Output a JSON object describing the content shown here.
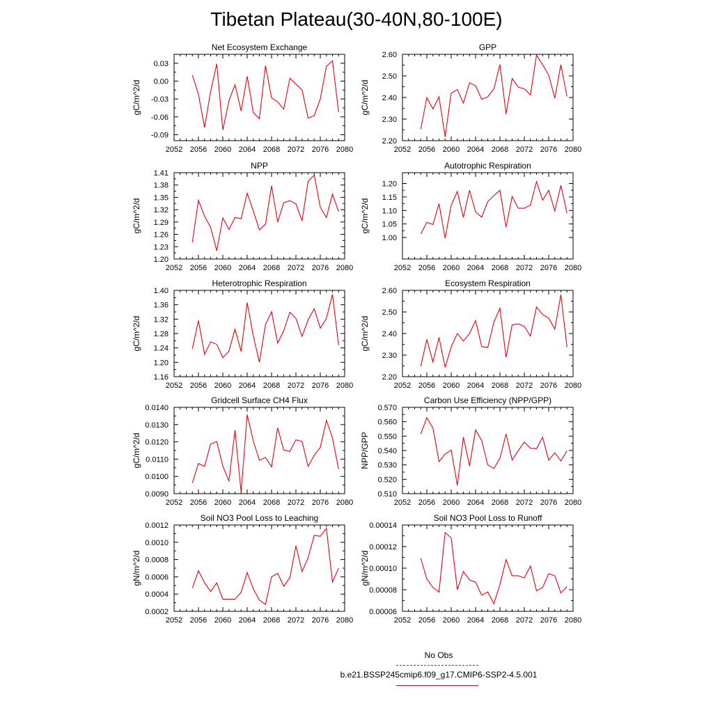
{
  "title": "Tibetan Plateau(30-40N,80-100E)",
  "legend": {
    "obs_label": "No Obs",
    "obs_color": "#3b3bd6",
    "case_label": "b.e21.BSSP245cmip6.f09_g17.CMIP6-SSP2-4.5.001",
    "case_color": "#e8000b"
  },
  "x_ticks": [
    "2052",
    "2056",
    "2060",
    "2064",
    "2068",
    "2072",
    "2076",
    "2080"
  ],
  "chart_data": [
    {
      "type": "line",
      "title": "Net Ecosystem Exchange",
      "ylabel": "gC/m^2/d",
      "xlim": [
        2052,
        2080
      ],
      "ylim": [
        -0.1,
        0.045
      ],
      "yticks": [
        "0.03",
        "0.00",
        "-0.03",
        "-0.06",
        "-0.09"
      ],
      "yticks_values": [
        0.03,
        0.0,
        -0.03,
        -0.06,
        -0.09
      ],
      "x": [
        2055,
        2056,
        2057,
        2058,
        2059,
        2060,
        2061,
        2062,
        2063,
        2064,
        2065,
        2066,
        2067,
        2068,
        2069,
        2070,
        2071,
        2072,
        2073,
        2074,
        2075,
        2076,
        2077,
        2078,
        2079
      ],
      "values": [
        0.01,
        -0.022,
        -0.078,
        -0.017,
        0.029,
        -0.082,
        -0.033,
        -0.006,
        -0.05,
        0.008,
        -0.053,
        -0.063,
        0.026,
        -0.028,
        -0.035,
        -0.047,
        0.005,
        -0.005,
        -0.015,
        -0.062,
        -0.058,
        -0.03,
        0.025,
        0.034,
        -0.052
      ]
    },
    {
      "type": "line",
      "title": "GPP",
      "ylabel": "gC/m^2/d",
      "xlim": [
        2052,
        2080
      ],
      "ylim": [
        2.2,
        2.6
      ],
      "yticks": [
        "2.60",
        "2.50",
        "2.40",
        "2.30",
        "2.20"
      ],
      "yticks_values": [
        2.6,
        2.5,
        2.4,
        2.3,
        2.2
      ],
      "x": [
        2055,
        2056,
        2057,
        2058,
        2059,
        2060,
        2061,
        2062,
        2063,
        2064,
        2065,
        2066,
        2067,
        2068,
        2069,
        2070,
        2071,
        2072,
        2073,
        2074,
        2075,
        2076,
        2077,
        2078,
        2079
      ],
      "values": [
        2.254,
        2.399,
        2.347,
        2.403,
        2.218,
        2.42,
        2.437,
        2.374,
        2.468,
        2.455,
        2.392,
        2.403,
        2.44,
        2.553,
        2.324,
        2.488,
        2.448,
        2.44,
        2.412,
        2.596,
        2.552,
        2.504,
        2.397,
        2.552,
        2.405
      ]
    },
    {
      "type": "line",
      "title": "NPP",
      "ylabel": "gC/m^2/d",
      "xlim": [
        2052,
        2080
      ],
      "ylim": [
        1.2,
        1.41
      ],
      "yticks": [
        "1.41",
        "1.38",
        "1.35",
        "1.32",
        "1.29",
        "1.26",
        "1.23",
        "1.20"
      ],
      "yticks_values": [
        1.41,
        1.38,
        1.35,
        1.32,
        1.29,
        1.26,
        1.23,
        1.2
      ],
      "x": [
        2055,
        2056,
        2057,
        2058,
        2059,
        2060,
        2061,
        2062,
        2063,
        2064,
        2065,
        2066,
        2067,
        2068,
        2069,
        2070,
        2071,
        2072,
        2073,
        2074,
        2075,
        2076,
        2077,
        2078,
        2079
      ],
      "values": [
        1.241,
        1.343,
        1.304,
        1.277,
        1.22,
        1.3,
        1.272,
        1.301,
        1.298,
        1.36,
        1.317,
        1.271,
        1.285,
        1.378,
        1.29,
        1.337,
        1.342,
        1.334,
        1.293,
        1.389,
        1.404,
        1.326,
        1.301,
        1.358,
        1.315
      ]
    },
    {
      "type": "line",
      "title": "Autotrophic Respiration",
      "ylabel": "gC/m^2/d",
      "xlim": [
        2052,
        2080
      ],
      "ylim": [
        0.92,
        1.24
      ],
      "yticks": [
        "1.20",
        "1.15",
        "1.10",
        "1.05",
        "1.00"
      ],
      "yticks_values": [
        1.2,
        1.15,
        1.1,
        1.05,
        1.0
      ],
      "x": [
        2055,
        2056,
        2057,
        2058,
        2059,
        2060,
        2061,
        2062,
        2063,
        2064,
        2065,
        2066,
        2067,
        2068,
        2069,
        2070,
        2071,
        2072,
        2073,
        2074,
        2075,
        2076,
        2077,
        2078,
        2079
      ],
      "values": [
        1.013,
        1.056,
        1.048,
        1.125,
        0.997,
        1.12,
        1.17,
        1.074,
        1.175,
        1.095,
        1.075,
        1.133,
        1.155,
        1.175,
        1.038,
        1.152,
        1.108,
        1.108,
        1.12,
        1.207,
        1.138,
        1.175,
        1.098,
        1.193,
        1.09
      ]
    },
    {
      "type": "line",
      "title": "Heterotrophic Respiration",
      "ylabel": "gC/m^2/d",
      "xlim": [
        2052,
        2080
      ],
      "ylim": [
        1.16,
        1.4
      ],
      "yticks": [
        "1.40",
        "1.36",
        "1.32",
        "1.28",
        "1.24",
        "1.20",
        "1.16"
      ],
      "yticks_values": [
        1.4,
        1.36,
        1.32,
        1.28,
        1.24,
        1.2,
        1.16
      ],
      "x": [
        2055,
        2056,
        2057,
        2058,
        2059,
        2060,
        2061,
        2062,
        2063,
        2064,
        2065,
        2066,
        2067,
        2068,
        2069,
        2070,
        2071,
        2072,
        2073,
        2074,
        2075,
        2076,
        2077,
        2078,
        2079
      ],
      "values": [
        1.238,
        1.316,
        1.222,
        1.257,
        1.25,
        1.213,
        1.231,
        1.292,
        1.23,
        1.366,
        1.273,
        1.2,
        1.305,
        1.341,
        1.253,
        1.288,
        1.339,
        1.322,
        1.272,
        1.318,
        1.349,
        1.295,
        1.322,
        1.389,
        1.248
      ]
    },
    {
      "type": "line",
      "title": "Ecosystem Respiration",
      "ylabel": "gC/m^2/d",
      "xlim": [
        2052,
        2080
      ],
      "ylim": [
        2.2,
        2.6
      ],
      "yticks": [
        "2.60",
        "2.50",
        "2.40",
        "2.30",
        "2.20"
      ],
      "yticks_values": [
        2.6,
        2.5,
        2.4,
        2.3,
        2.2
      ],
      "x": [
        2055,
        2056,
        2057,
        2058,
        2059,
        2060,
        2061,
        2062,
        2063,
        2064,
        2065,
        2066,
        2067,
        2068,
        2069,
        2070,
        2071,
        2072,
        2073,
        2074,
        2075,
        2076,
        2077,
        2078,
        2079
      ],
      "values": [
        2.248,
        2.373,
        2.268,
        2.382,
        2.243,
        2.338,
        2.4,
        2.365,
        2.4,
        2.46,
        2.34,
        2.335,
        2.453,
        2.517,
        2.29,
        2.44,
        2.445,
        2.433,
        2.388,
        2.523,
        2.488,
        2.472,
        2.42,
        2.58,
        2.337
      ]
    },
    {
      "type": "line",
      "title": "Gridcell Surface CH4 Flux",
      "ylabel": "gC/m^2/d",
      "xlim": [
        2052,
        2080
      ],
      "ylim": [
        0.009,
        0.014
      ],
      "yticks": [
        "0.0140",
        "0.0130",
        "0.0120",
        "0.0110",
        "0.0100",
        "0.0090"
      ],
      "yticks_values": [
        0.014,
        0.013,
        0.012,
        0.011,
        0.01,
        0.009
      ],
      "x": [
        2055,
        2056,
        2057,
        2058,
        2059,
        2060,
        2061,
        2062,
        2063,
        2064,
        2065,
        2066,
        2067,
        2068,
        2069,
        2070,
        2071,
        2072,
        2073,
        2074,
        2075,
        2076,
        2077,
        2078,
        2079
      ],
      "values": [
        0.00963,
        0.01075,
        0.01058,
        0.01187,
        0.01202,
        0.0106,
        0.00973,
        0.01268,
        0.00908,
        0.01358,
        0.01205,
        0.01094,
        0.0111,
        0.01055,
        0.01281,
        0.01153,
        0.01145,
        0.01212,
        0.01202,
        0.01058,
        0.01122,
        0.01168,
        0.01324,
        0.01222,
        0.01042
      ]
    },
    {
      "type": "line",
      "title": "Carbon Use Efficiency (NPP/GPP)",
      "ylabel": "NPP/GPP",
      "xlim": [
        2052,
        2080
      ],
      "ylim": [
        0.51,
        0.57
      ],
      "yticks": [
        "0.570",
        "0.560",
        "0.550",
        "0.540",
        "0.530",
        "0.520",
        "0.510"
      ],
      "yticks_values": [
        0.57,
        0.56,
        0.55,
        0.54,
        0.53,
        0.52,
        0.51
      ],
      "x": [
        2055,
        2056,
        2057,
        2058,
        2059,
        2060,
        2061,
        2062,
        2063,
        2064,
        2065,
        2066,
        2067,
        2068,
        2069,
        2070,
        2071,
        2072,
        2073,
        2074,
        2075,
        2076,
        2077,
        2078,
        2079
      ],
      "values": [
        0.5515,
        0.5628,
        0.5556,
        0.5324,
        0.5375,
        0.5403,
        0.5158,
        0.5493,
        0.5293,
        0.5543,
        0.547,
        0.53,
        0.5275,
        0.5346,
        0.5515,
        0.5333,
        0.5399,
        0.5458,
        0.5416,
        0.5413,
        0.5492,
        0.5333,
        0.5384,
        0.5328,
        0.5398
      ]
    },
    {
      "type": "line",
      "title": "Soil NO3 Pool Loss to Leaching",
      "ylabel": "gN/m^2/d",
      "xlim": [
        2052,
        2080
      ],
      "ylim": [
        0.0002,
        0.0012
      ],
      "yticks": [
        "0.0012",
        "0.0010",
        "0.0008",
        "0.0006",
        "0.0004",
        "0.0002"
      ],
      "yticks_values": [
        0.0012,
        0.001,
        0.0008,
        0.0006,
        0.0004,
        0.0002
      ],
      "x": [
        2055,
        2056,
        2057,
        2058,
        2059,
        2060,
        2061,
        2062,
        2063,
        2064,
        2065,
        2066,
        2067,
        2068,
        2069,
        2070,
        2071,
        2072,
        2073,
        2074,
        2075,
        2076,
        2077,
        2078,
        2079
      ],
      "values": [
        0.00047,
        0.00067,
        0.00053,
        0.00043,
        0.00053,
        0.00034,
        0.00034,
        0.00034,
        0.00042,
        0.00065,
        0.00046,
        0.00033,
        0.00028,
        0.0006,
        0.00064,
        0.00049,
        0.00059,
        0.00096,
        0.00066,
        0.00082,
        0.00108,
        0.00107,
        0.00116,
        0.00054,
        0.0007
      ]
    },
    {
      "type": "line",
      "title": "Soil NO3 Pool Loss to Runoff",
      "ylabel": "gN/m^2/d",
      "xlim": [
        2052,
        2080
      ],
      "ylim": [
        6e-05,
        0.00014
      ],
      "yticks": [
        "0.00014",
        "0.00012",
        "0.00010",
        "0.00008",
        "0.00006"
      ],
      "yticks_values": [
        0.00014,
        0.00012,
        0.0001,
        8e-05,
        6e-05
      ],
      "x": [
        2055,
        2056,
        2057,
        2058,
        2059,
        2060,
        2061,
        2062,
        2063,
        2064,
        2065,
        2066,
        2067,
        2068,
        2069,
        2070,
        2071,
        2072,
        2073,
        2074,
        2075,
        2076,
        2077,
        2078,
        2079
      ],
      "values": [
        0.000109,
        9e-05,
        8.2e-05,
        7.8e-05,
        0.000133,
        0.000128,
        8e-05,
        9.7e-05,
        8.9e-05,
        8.7e-05,
        7.5e-05,
        7.8e-05,
        6.7e-05,
        8.5e-05,
        0.000108,
        9.3e-05,
        9.3e-05,
        9.1e-05,
        0.000102,
        7.9e-05,
        8.2e-05,
        9.5e-05,
        9.3e-05,
        7.7e-05,
        8.3e-05
      ]
    }
  ]
}
